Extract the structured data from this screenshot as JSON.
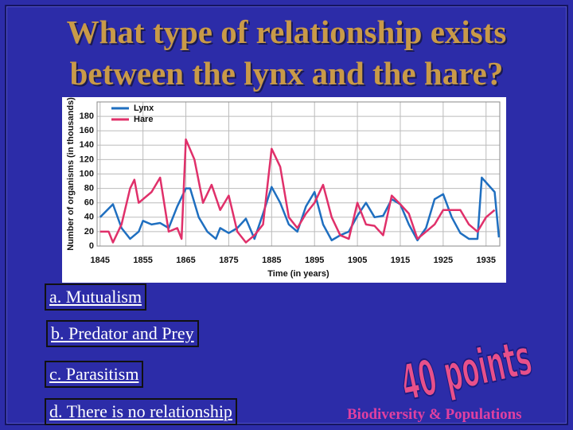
{
  "title": "What type of relationship exists between the lynx and the hare?",
  "chart_data": {
    "type": "line",
    "xlabel": "Time (in years)",
    "ylabel": "Number of organisms (in thousands)",
    "xlim": [
      1844.3,
      1938.2
    ],
    "ylim": [
      0,
      200
    ],
    "xticks": [
      1845,
      1855,
      1865,
      1875,
      1885,
      1895,
      1905,
      1915,
      1925,
      1935
    ],
    "yticks": [
      0,
      20,
      40,
      60,
      80,
      100,
      120,
      140,
      160,
      180
    ],
    "grid": true,
    "legend": "upper left",
    "series": [
      {
        "name": "Lynx",
        "color": "#1f6fc0",
        "x": [
          1845,
          1848,
          1850,
          1852,
          1854,
          1855,
          1857,
          1859,
          1861,
          1863,
          1865,
          1866,
          1868,
          1870,
          1872,
          1873,
          1875,
          1877,
          1879,
          1881,
          1883,
          1885,
          1887,
          1889,
          1891,
          1893,
          1895,
          1897,
          1899,
          1901,
          1903,
          1905,
          1907,
          1909,
          1911,
          1913,
          1915,
          1917,
          1919,
          1921,
          1923,
          1925,
          1927,
          1929,
          1931,
          1933,
          1934,
          1937,
          1938
        ],
        "values": [
          40,
          58,
          25,
          10,
          20,
          35,
          30,
          32,
          25,
          55,
          80,
          80,
          40,
          20,
          10,
          25,
          18,
          25,
          38,
          10,
          45,
          82,
          60,
          30,
          20,
          55,
          75,
          30,
          8,
          15,
          20,
          42,
          60,
          40,
          42,
          65,
          58,
          30,
          8,
          25,
          65,
          72,
          40,
          18,
          10,
          10,
          95,
          75,
          12
        ]
      },
      {
        "name": "Hare",
        "color": "#e0306a",
        "x": [
          1845,
          1847,
          1848,
          1850,
          1852,
          1853,
          1854,
          1857,
          1859,
          1861,
          1863,
          1864,
          1865,
          1867,
          1869,
          1871,
          1873,
          1875,
          1877,
          1879,
          1881,
          1883,
          1885,
          1887,
          1889,
          1891,
          1893,
          1895,
          1897,
          1899,
          1901,
          1903,
          1905,
          1907,
          1909,
          1911,
          1913,
          1915,
          1917,
          1919,
          1921,
          1923,
          1925,
          1927,
          1929,
          1931,
          1933,
          1935,
          1937
        ],
        "values": [
          20,
          20,
          5,
          30,
          80,
          92,
          60,
          75,
          95,
          20,
          25,
          10,
          148,
          120,
          60,
          85,
          50,
          70,
          20,
          5,
          15,
          30,
          135,
          110,
          40,
          25,
          45,
          60,
          85,
          40,
          15,
          10,
          60,
          30,
          28,
          15,
          70,
          58,
          45,
          10,
          20,
          30,
          50,
          50,
          50,
          30,
          20,
          40,
          50
        ]
      }
    ]
  },
  "options": [
    "a. Mutualism",
    "b. Predator and Prey",
    "c. Parasitism",
    "d. There is no relationship"
  ],
  "points": "40 points",
  "footer": "Biodiversity & Populations"
}
